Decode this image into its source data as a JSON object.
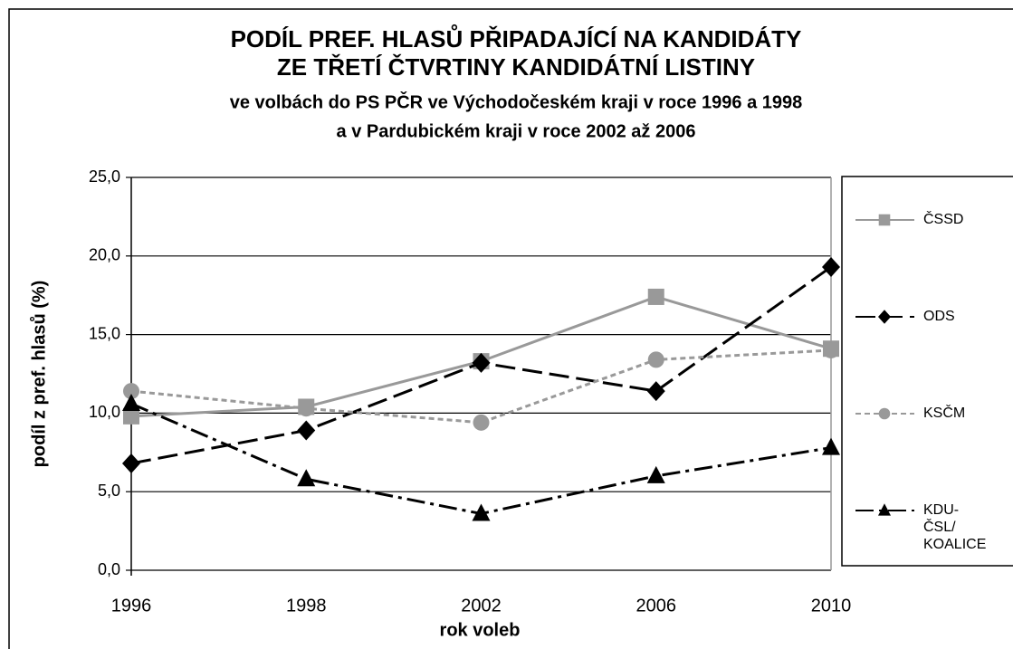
{
  "chart_data": {
    "type": "line",
    "title": [
      "PODÍL PREF. HLASŮ PŘIPADAJÍCÍ NA KANDIDÁTY",
      "ZE TŘETÍ ČTVRTINY KANDIDÁTNÍ LISTINY"
    ],
    "subtitle": [
      "ve volbách do PS PČR ve Východočeském kraji v roce 1996 a 1998",
      "a v Pardubickém kraji v roce 2002 až 2006"
    ],
    "x_label": "rok voleb",
    "y_label": "podíl z pref. hlasů (%)",
    "categories": [
      "1996",
      "1998",
      "2002",
      "2006",
      "2010"
    ],
    "series": [
      {
        "name": "ČSSD",
        "color": "#999999",
        "dash": "none",
        "marker": "square",
        "values": [
          9.8,
          10.4,
          13.3,
          17.4,
          14.1
        ]
      },
      {
        "name": "ODS",
        "color": "#000000",
        "dash": "22 8",
        "marker": "diamond",
        "values": [
          6.8,
          8.9,
          13.2,
          11.4,
          19.3
        ]
      },
      {
        "name": "KSČM",
        "color": "#999999",
        "dash": "6 4",
        "marker": "circle",
        "values": [
          11.4,
          10.3,
          9.4,
          13.4,
          14.0
        ]
      },
      {
        "name": "KDU-ČSL/ KOALICE",
        "color": "#000000",
        "dash": "20 6 4 6",
        "marker": "triangle",
        "values": [
          10.6,
          5.8,
          3.6,
          6.0,
          7.8
        ]
      }
    ],
    "ylim": [
      0,
      25
    ],
    "yticks": [
      {
        "value": 0,
        "label": "0,0"
      },
      {
        "value": 5,
        "label": "5,0"
      },
      {
        "value": 10,
        "label": "10,0"
      },
      {
        "value": 15,
        "label": "15,0"
      },
      {
        "value": 20,
        "label": "20,0"
      },
      {
        "value": 25,
        "label": "25,0"
      }
    ],
    "grid": true,
    "legend": "right"
  }
}
